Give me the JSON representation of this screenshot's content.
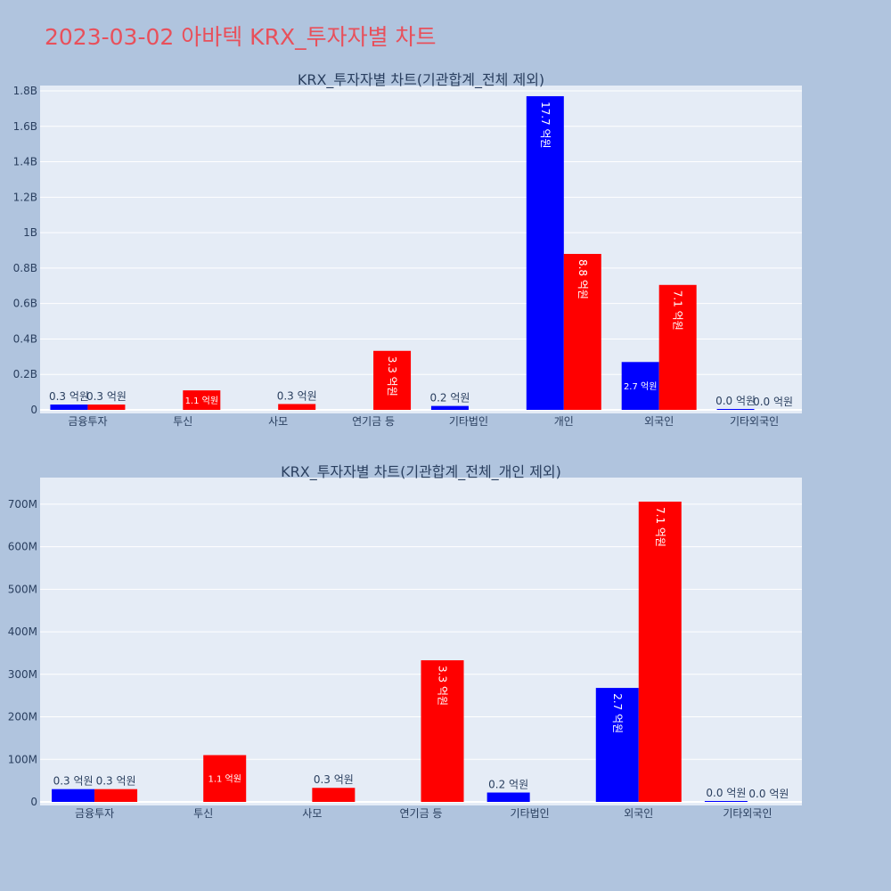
{
  "title": "2023-03-02 아바텍 KRX_투자자별 차트",
  "colors": {
    "buy": "#0000ff",
    "sell": "#ff0000",
    "background": "#b0c4de",
    "plot_bg": "#e5ecf6",
    "title": "#e8505b"
  },
  "chart_data": [
    {
      "type": "bar",
      "title": "KRX_투자자별 차트(기관합계_전체 제외)",
      "categories": [
        "금융투자",
        "투신",
        "사모",
        "연기금 등",
        "기타법인",
        "개인",
        "외국인",
        "기타외국인"
      ],
      "series": [
        {
          "values": [
            30000000,
            0,
            0,
            0,
            22000000,
            1770000000,
            270000000,
            2000000
          ],
          "labels": [
            "0.3 억원",
            "",
            "",
            "",
            "0.2 억원",
            "17.7 억원",
            "2.7 억원",
            "0.0 억원"
          ]
        },
        {
          "values": [
            30000000,
            110000000,
            33000000,
            333000000,
            0,
            880000000,
            705000000,
            0
          ],
          "labels": [
            "0.3 억원",
            "1.1 억원",
            "0.3 억원",
            "3.3 억원",
            "",
            "8.8 억원",
            "7.1 억원",
            "0.0 억원"
          ]
        }
      ],
      "ylim": [
        0,
        1800000000
      ],
      "yticks": [
        {
          "v": 0,
          "t": "0"
        },
        {
          "v": 200000000,
          "t": "0.2B"
        },
        {
          "v": 400000000,
          "t": "0.4B"
        },
        {
          "v": 600000000,
          "t": "0.6B"
        },
        {
          "v": 800000000,
          "t": "0.8B"
        },
        {
          "v": 1000000000,
          "t": "1B"
        },
        {
          "v": 1200000000,
          "t": "1.2B"
        },
        {
          "v": 1400000000,
          "t": "1.4B"
        },
        {
          "v": 1600000000,
          "t": "1.6B"
        },
        {
          "v": 1800000000,
          "t": "1.8B"
        }
      ],
      "grid": true,
      "legend": "none"
    },
    {
      "type": "bar",
      "title": "KRX_투자자별 차트(기관합계_전체_개인 제외)",
      "categories": [
        "금융투자",
        "투신",
        "사모",
        "연기금 등",
        "기타법인",
        "외국인",
        "기타외국인"
      ],
      "series": [
        {
          "values": [
            30000000,
            0,
            0,
            0,
            22000000,
            268000000,
            2000000
          ],
          "labels": [
            "0.3 억원",
            "",
            "",
            "",
            "0.2 억원",
            "2.7 억원",
            "0.0 억원"
          ]
        },
        {
          "values": [
            30000000,
            110000000,
            33000000,
            333000000,
            0,
            706000000,
            0
          ],
          "labels": [
            "0.3 억원",
            "1.1 억원",
            "0.3 억원",
            "3.3 억원",
            "",
            "7.1 억원",
            "0.0 억원"
          ]
        }
      ],
      "ylim": [
        0,
        750000000
      ],
      "yticks": [
        {
          "v": 0,
          "t": "0"
        },
        {
          "v": 100000000,
          "t": "100M"
        },
        {
          "v": 200000000,
          "t": "200M"
        },
        {
          "v": 300000000,
          "t": "300M"
        },
        {
          "v": 400000000,
          "t": "400M"
        },
        {
          "v": 500000000,
          "t": "500M"
        },
        {
          "v": 600000000,
          "t": "600M"
        },
        {
          "v": 700000000,
          "t": "700M"
        }
      ],
      "grid": true,
      "legend": "none"
    }
  ]
}
